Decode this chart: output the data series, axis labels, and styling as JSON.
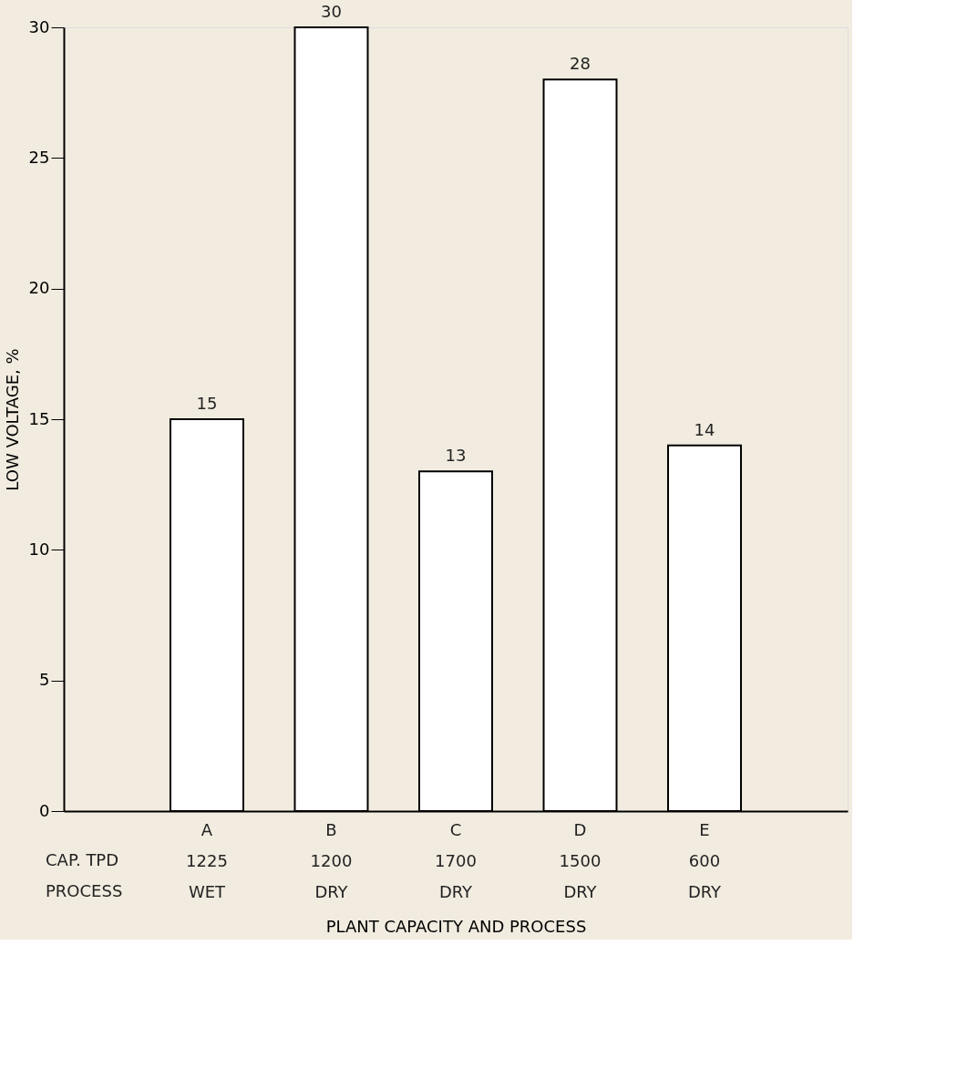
{
  "chart_data": {
    "type": "bar",
    "xlabel": "PLANT CAPACITY AND PROCESS",
    "ylabel": "LOW VOLTAGE, %",
    "categories": [
      "A\n1225\nWET",
      "B\n1200\nDRY",
      "C\n1700\nDRY",
      "D\n1500\nDRY",
      "E\n600\nDRY"
    ],
    "values": [
      15,
      30,
      13,
      28,
      14
    ],
    "color": "#ffffff",
    "ylim": [
      0,
      30
    ],
    "yticks": [
      0,
      5,
      10,
      15,
      20,
      25,
      30
    ],
    "grid": false,
    "data_labels": true,
    "annotations": [
      "CAP. TPD",
      "PROCESS"
    ]
  }
}
